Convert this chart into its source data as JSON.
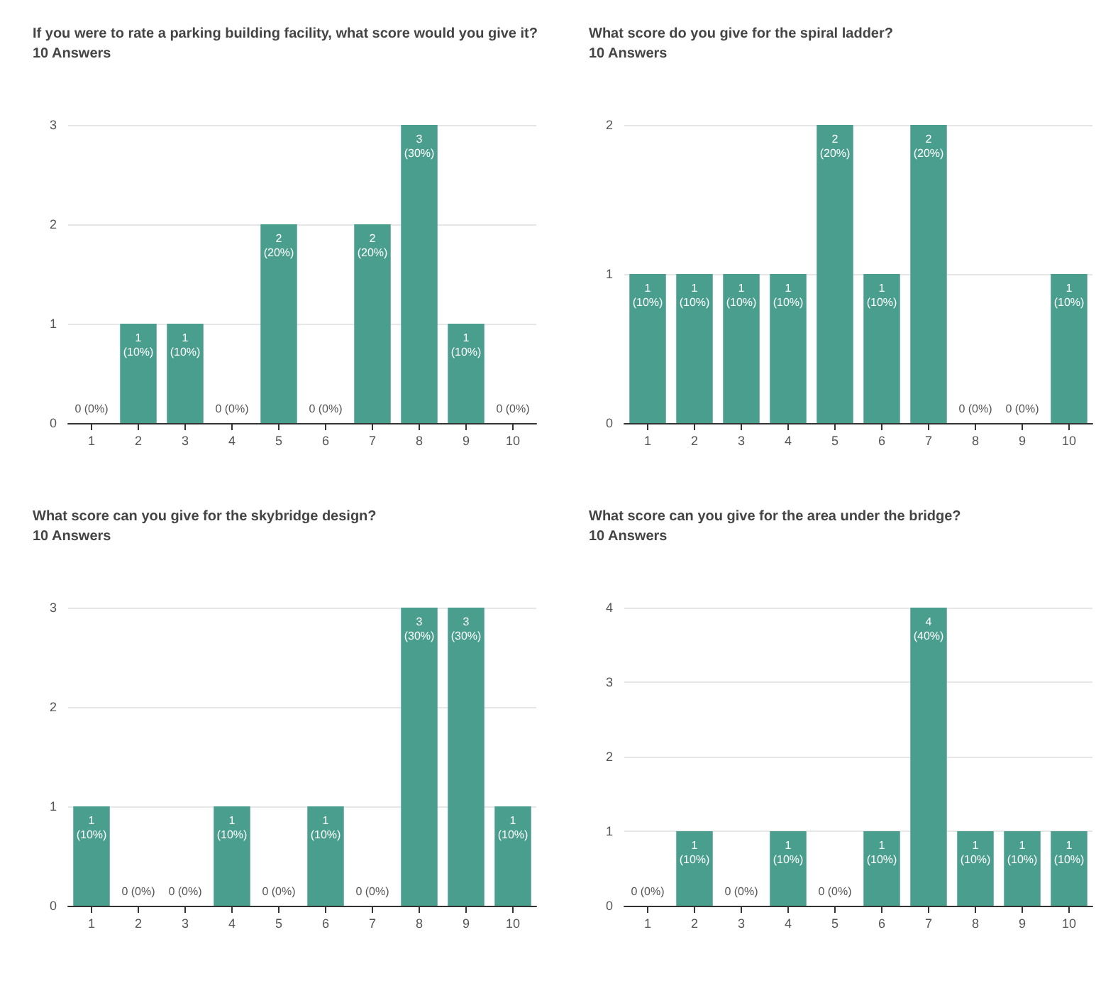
{
  "chart_data": [
    {
      "type": "bar",
      "title": "If you were to rate a parking building facility, what score would you give it?",
      "subtitle": "10 Answers",
      "categories": [
        "1",
        "2",
        "3",
        "4",
        "5",
        "6",
        "7",
        "8",
        "9",
        "10"
      ],
      "values": [
        0,
        1,
        1,
        0,
        2,
        0,
        2,
        3,
        1,
        0
      ],
      "color": "#4a9e8e",
      "value_labels": [
        "0 (0%)",
        "1\n(10%)",
        "1\n(10%)",
        "0 (0%)",
        "2\n(20%)",
        "0 (0%)",
        "2\n(20%)",
        "3\n(30%)",
        "1\n(10%)",
        "0 (0%)"
      ],
      "ylim": [
        0,
        3
      ],
      "yticks": [
        0,
        1,
        2,
        3
      ],
      "grid": "y"
    },
    {
      "type": "bar",
      "title": "What score do you give for the spiral ladder?",
      "subtitle": "10 Answers",
      "categories": [
        "1",
        "2",
        "3",
        "4",
        "5",
        "6",
        "7",
        "8",
        "9",
        "10"
      ],
      "values": [
        1,
        1,
        1,
        1,
        2,
        1,
        2,
        0,
        0,
        1
      ],
      "color": "#4a9e8e",
      "value_labels": [
        "1\n(10%)",
        "1\n(10%)",
        "1\n(10%)",
        "1\n(10%)",
        "2\n(20%)",
        "1\n(10%)",
        "2\n(20%)",
        "0 (0%)",
        "0 (0%)",
        "1\n(10%)"
      ],
      "ylim": [
        0,
        2
      ],
      "yticks": [
        0,
        1,
        2
      ],
      "grid": "y"
    },
    {
      "type": "bar",
      "title": "What score can you give for the skybridge design?",
      "subtitle": "10 Answers",
      "categories": [
        "1",
        "2",
        "3",
        "4",
        "5",
        "6",
        "7",
        "8",
        "9",
        "10"
      ],
      "values": [
        1,
        0,
        0,
        1,
        0,
        1,
        0,
        3,
        3,
        1
      ],
      "color": "#4a9e8e",
      "value_labels": [
        "1\n(10%)",
        "0 (0%)",
        "0 (0%)",
        "1\n(10%)",
        "0 (0%)",
        "1\n(10%)",
        "0 (0%)",
        "3\n(30%)",
        "3\n(30%)",
        "1\n(10%)"
      ],
      "ylim": [
        0,
        3
      ],
      "yticks": [
        0,
        1,
        2,
        3
      ],
      "grid": "y"
    },
    {
      "type": "bar",
      "title": "What score can you give for the area under the bridge?",
      "subtitle": "10 Answers",
      "categories": [
        "1",
        "2",
        "3",
        "4",
        "5",
        "6",
        "7",
        "8",
        "9",
        "10"
      ],
      "values": [
        0,
        1,
        0,
        1,
        0,
        1,
        4,
        1,
        1,
        1
      ],
      "color": "#4a9e8e",
      "value_labels": [
        "0 (0%)",
        "1\n(10%)",
        "0 (0%)",
        "1\n(10%)",
        "0 (0%)",
        "1\n(10%)",
        "4\n(40%)",
        "1\n(10%)",
        "1\n(10%)",
        "1\n(10%)"
      ],
      "ylim": [
        0,
        4
      ],
      "yticks": [
        0,
        1,
        2,
        3,
        4
      ],
      "grid": "y"
    }
  ]
}
